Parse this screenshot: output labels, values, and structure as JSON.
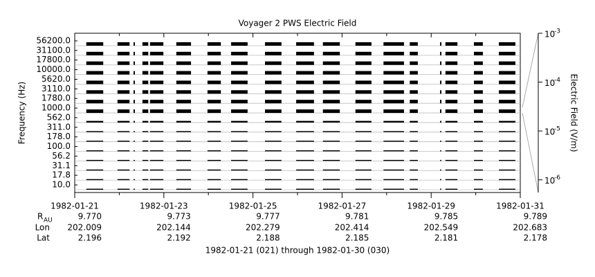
{
  "chart_data": {
    "type": "strip",
    "title": "Voyager 2 PWS Electric Field",
    "ylabel": "Frequency (Hz)",
    "y2label": "Electric Field (V/m)",
    "xlabel": "1982-01-21 (021) through 1982-01-30 (030)",
    "categories": [
      "56200.0",
      "31100.0",
      "17800.0",
      "10000.0",
      "5620.0",
      "3110.0",
      "1780.0",
      "1000.0",
      "562.0",
      "311.0",
      "178.0",
      "100.0",
      "56.2",
      "31.1",
      "17.8",
      "10.0"
    ],
    "levels": [
      2e-06,
      2e-06,
      2e-06,
      2e-06,
      2e-06,
      2e-06,
      2e-06,
      2e-06,
      1e-06,
      8e-07,
      8e-07,
      8e-07,
      8e-07,
      8e-07,
      8e-07,
      8e-07
    ],
    "color": "#000000",
    "xlim": [
      21,
      31
    ],
    "xticks": [
      {
        "value": 21,
        "label": "1982-01-21"
      },
      {
        "value": 23,
        "label": "1982-01-23"
      },
      {
        "value": 25,
        "label": "1982-01-25"
      },
      {
        "value": 27,
        "label": "1982-01-27"
      },
      {
        "value": 29,
        "label": "1982-01-29"
      },
      {
        "value": 31,
        "label": "1982-01-31"
      }
    ],
    "xminorticks": [
      22,
      24,
      26,
      28,
      30
    ],
    "y2scale": "log",
    "y2lim": [
      5.5e-07,
      0.001
    ],
    "y2ticks": [
      {
        "value": 0.001,
        "label": "10",
        "exponent": "-3"
      },
      {
        "value": 0.0001,
        "label": "10",
        "exponent": "-4"
      },
      {
        "value": 1e-05,
        "label": "10",
        "exponent": "-5"
      },
      {
        "value": 1e-06,
        "label": "10",
        "exponent": "-6"
      }
    ],
    "segments": [
      [
        21.26,
        21.64
      ],
      [
        21.96,
        22.23
      ],
      [
        22.32,
        22.35
      ],
      [
        22.52,
        22.65
      ],
      [
        22.69,
        22.99
      ],
      [
        23.28,
        23.61
      ],
      [
        23.98,
        24.28
      ],
      [
        24.51,
        24.88
      ],
      [
        25.27,
        25.64
      ],
      [
        25.97,
        26.37
      ],
      [
        26.57,
        26.95
      ],
      [
        27.3,
        27.66
      ],
      [
        27.93,
        28.39
      ],
      [
        28.52,
        28.7
      ],
      [
        29.2,
        29.23
      ],
      [
        29.32,
        29.59
      ],
      [
        29.96,
        30.16
      ],
      [
        30.52,
        30.89
      ]
    ],
    "grid": true
  },
  "ephemeris": {
    "rows": [
      {
        "label": "R",
        "subscript": "AU",
        "values": [
          "9.770",
          "9.773",
          "9.777",
          "9.781",
          "9.785",
          "9.789"
        ]
      },
      {
        "label": "Lon",
        "values": [
          "202.009",
          "202.144",
          "202.279",
          "202.414",
          "202.549",
          "202.683"
        ]
      },
      {
        "label": "Lat",
        "values": [
          "2.196",
          "2.192",
          "2.188",
          "2.185",
          "2.181",
          "2.178"
        ]
      }
    ]
  }
}
